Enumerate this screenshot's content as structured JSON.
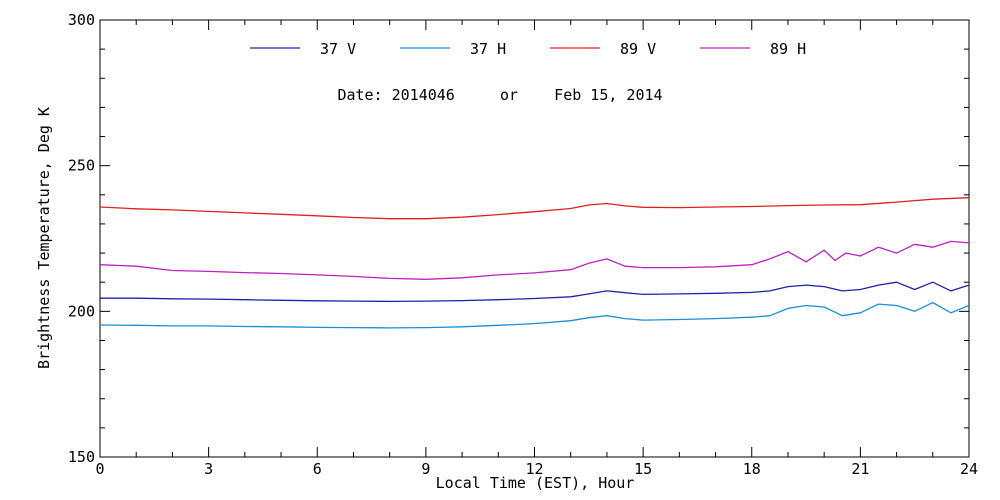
{
  "chart_data": {
    "type": "line",
    "title": "",
    "subtitle": "Date: 2014046     or    Feb 15, 2014",
    "xlabel": "Local Time (EST), Hour",
    "ylabel": "Brightness Temperature, Deg K",
    "xlim": [
      0,
      24
    ],
    "ylim": [
      150,
      300
    ],
    "x_ticks": [
      0,
      3,
      6,
      9,
      12,
      15,
      18,
      21,
      24
    ],
    "y_ticks": [
      150,
      200,
      250,
      300
    ],
    "x_minor_step": 1,
    "y_minor_step": 10,
    "grid": false,
    "legend_position": "top",
    "series": [
      {
        "name": "37 V",
        "color": "#2020b0",
        "x": [
          0,
          1,
          2,
          3,
          4,
          5,
          6,
          7,
          8,
          9,
          10,
          11,
          12,
          13,
          13.5,
          14,
          14.5,
          15,
          16,
          17,
          18,
          18.5,
          19,
          19.5,
          20,
          20.5,
          21,
          21.5,
          22,
          22.5,
          23,
          23.5,
          24
        ],
        "y": [
          204.5,
          204.5,
          204.3,
          204.2,
          204,
          203.8,
          203.6,
          203.5,
          203.4,
          203.5,
          203.7,
          204,
          204.4,
          205,
          206,
          207,
          206.4,
          205.8,
          206,
          206.2,
          206.5,
          207,
          208.5,
          209,
          208.5,
          207,
          207.5,
          209,
          210,
          207.5,
          210,
          207,
          209
        ]
      },
      {
        "name": "37 H",
        "color": "#1a8fd8",
        "x": [
          0,
          1,
          2,
          3,
          4,
          5,
          6,
          7,
          8,
          9,
          10,
          11,
          12,
          13,
          13.5,
          14,
          14.5,
          15,
          16,
          17,
          18,
          18.5,
          19,
          19.5,
          20,
          20.5,
          21,
          21.5,
          22,
          22.5,
          23,
          23.5,
          24
        ],
        "y": [
          195.3,
          195.2,
          195,
          195,
          194.8,
          194.7,
          194.5,
          194.4,
          194.3,
          194.4,
          194.7,
          195.2,
          195.8,
          196.8,
          197.8,
          198.5,
          197.5,
          197,
          197.2,
          197.5,
          198,
          198.5,
          201,
          202,
          201.5,
          198.5,
          199.5,
          202.5,
          202,
          200,
          203,
          199.5,
          202
        ]
      },
      {
        "name": "89 V",
        "color": "#e02020",
        "x": [
          0,
          1,
          2,
          3,
          4,
          5,
          6,
          7,
          8,
          9,
          10,
          11,
          12,
          13,
          13.5,
          14,
          14.5,
          15,
          16,
          17,
          18,
          19,
          20,
          21,
          22,
          23,
          24
        ],
        "y": [
          235.8,
          235.2,
          234.8,
          234.3,
          233.8,
          233.3,
          232.8,
          232.2,
          231.8,
          231.8,
          232.3,
          233.2,
          234.2,
          235.3,
          236.5,
          237,
          236.2,
          235.7,
          235.6,
          235.8,
          236,
          236.3,
          236.5,
          236.6,
          237.5,
          238.5,
          239
        ]
      },
      {
        "name": "89 H",
        "color": "#c020c0",
        "x": [
          0,
          1,
          2,
          3,
          4,
          5,
          6,
          7,
          8,
          9,
          10,
          11,
          12,
          13,
          13.5,
          14,
          14.5,
          15,
          16,
          17,
          18,
          18.5,
          19,
          19.5,
          20,
          20.3,
          20.6,
          21,
          21.5,
          22,
          22.5,
          23,
          23.5,
          24
        ],
        "y": [
          216,
          215.5,
          214,
          213.7,
          213.3,
          213,
          212.5,
          212,
          211.3,
          211,
          211.5,
          212.5,
          213.2,
          214.3,
          216.5,
          218,
          215.5,
          215,
          215,
          215.3,
          216,
          218,
          220.5,
          217,
          221,
          217.5,
          220,
          219,
          222,
          220,
          223,
          222,
          224,
          223.5
        ]
      }
    ]
  }
}
